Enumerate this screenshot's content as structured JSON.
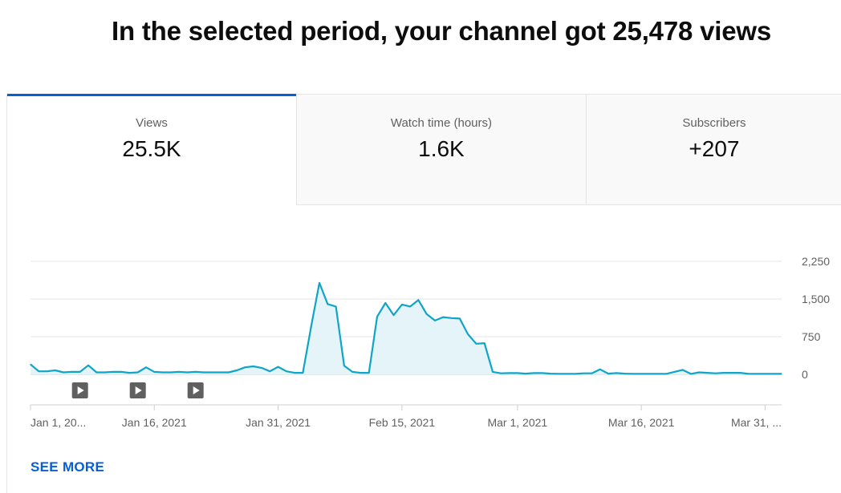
{
  "headline": "In the selected period, your channel got 25,478 views",
  "tabs": [
    {
      "label": "Views",
      "value": "25.5K",
      "active": true
    },
    {
      "label": "Watch time (hours)",
      "value": "1.6K",
      "active": false
    },
    {
      "label": "Subscribers",
      "value": "+207",
      "active": false
    }
  ],
  "see_more": "SEE MORE",
  "colors": {
    "accent": "#065fd4",
    "line": "#0ea5c9",
    "area": "#e4f4f8",
    "grid": "#e5e5e5"
  },
  "chart_data": {
    "type": "area",
    "x_start": "2021-01-01",
    "x_end": "2021-04-02",
    "ylim": [
      0,
      2250
    ],
    "yticks": [
      "2,250",
      "1,500",
      "750",
      "0"
    ],
    "ytick_values": [
      2250,
      1500,
      750,
      0
    ],
    "xticks": [
      "Jan 1, 20...",
      "Jan 16, 2021",
      "Jan 31, 2021",
      "Feb 15, 2021",
      "Mar 1, 2021",
      "Mar 16, 2021",
      "Mar 31, ..."
    ],
    "xtick_dates": [
      "2021-01-01",
      "2021-01-16",
      "2021-01-31",
      "2021-02-15",
      "2021-03-01",
      "2021-03-16",
      "2021-03-31"
    ],
    "video_markers": [
      "2021-01-07",
      "2021-01-14",
      "2021-01-21"
    ],
    "series": [
      {
        "values": [
          200,
          60,
          60,
          80,
          40,
          50,
          50,
          180,
          40,
          40,
          50,
          50,
          30,
          40,
          140,
          50,
          40,
          40,
          50,
          40,
          50,
          40,
          40,
          40,
          40,
          80,
          140,
          160,
          130,
          60,
          150,
          60,
          30,
          30,
          950,
          1820,
          1400,
          1350,
          170,
          50,
          30,
          30,
          1150,
          1420,
          1180,
          1390,
          1350,
          1480,
          1200,
          1070,
          1140,
          1120,
          1110,
          800,
          610,
          620,
          50,
          20,
          25,
          25,
          15,
          25,
          25,
          15,
          10,
          10,
          10,
          20,
          20,
          100,
          15,
          25,
          15,
          10,
          10,
          10,
          10,
          10,
          50,
          90,
          10,
          40,
          30,
          20,
          30,
          30,
          30,
          10,
          10,
          10,
          10,
          10
        ]
      }
    ]
  }
}
